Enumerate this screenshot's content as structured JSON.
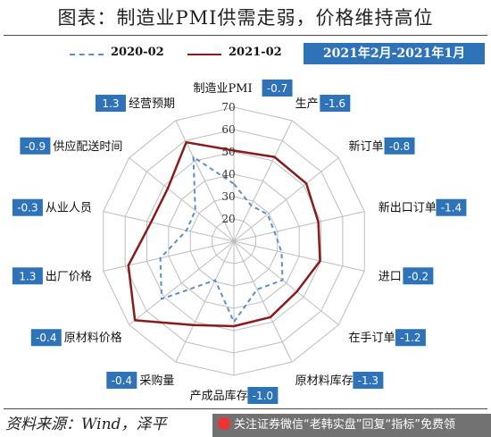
{
  "header": {
    "title": "图表：制造业PMI供需走弱，价格维持高位"
  },
  "legend": {
    "items": [
      "2020-02",
      "2021-02"
    ]
  },
  "period_label": "2021年2月-2021年1月",
  "footer": {
    "source": "资料来源：Wind，泽平",
    "banner": "关注证券微信“老韩实盘”回复“指标”免费领"
  },
  "colors": {
    "series_2020": "#5b8fc9",
    "series_2021": "#8b1a1a",
    "delta_box": "#2e72b8",
    "grid": "#bdbdbd"
  },
  "chart_data": {
    "type": "radar",
    "categories": [
      "制造业PMI",
      "生产",
      "新订单",
      "新出口订单",
      "进口",
      "在手订单",
      "原材料库存",
      "产成品库存",
      "采购量",
      "原材料价格",
      "出厂价格",
      "从业人员",
      "供应配送时间",
      "经营预期"
    ],
    "deltas": [
      "-0.7",
      "-1.6",
      "-0.8",
      "-1.4",
      "-0.2",
      "-1.2",
      "-1.3",
      "-1.0",
      "-0.4",
      "-0.4",
      "1.3",
      "-0.3",
      "-0.9",
      "1.3"
    ],
    "radial_ticks": [
      "20",
      "30",
      "40",
      "50",
      "60",
      "70"
    ],
    "rlim": [
      10,
      70
    ],
    "series": [
      {
        "name": "2020-02",
        "values": [
          35.7,
          27.8,
          29.3,
          28.7,
          31.9,
          37.9,
          33.9,
          46.1,
          29.3,
          51.4,
          43.8,
          31.8,
          32.1,
          51.9
        ]
      },
      {
        "name": "2021-02",
        "values": [
          50.6,
          51.9,
          51.5,
          48.8,
          49.6,
          46.1,
          47.7,
          48.0,
          51.6,
          66.7,
          58.5,
          48.1,
          47.9,
          59.2
        ]
      }
    ]
  }
}
